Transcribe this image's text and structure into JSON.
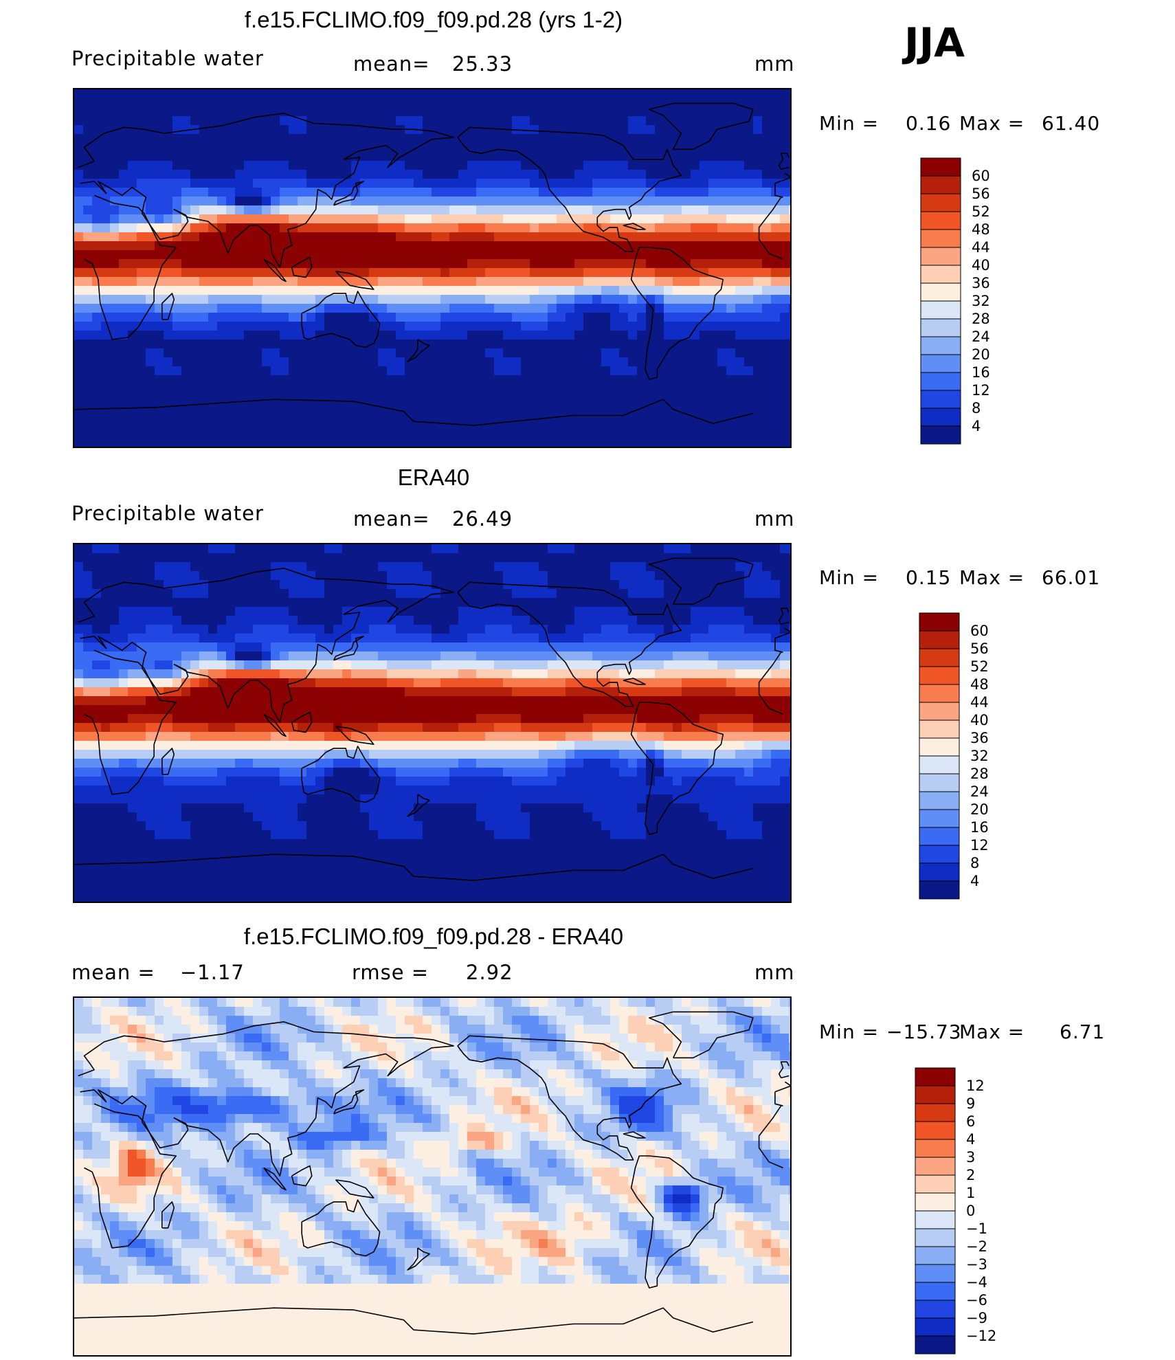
{
  "season": "JJA",
  "chart_data": [
    {
      "type": "heatmap",
      "title": "f.e15.FCLIMO.f09_f09.pd.28 (yrs 1-2)",
      "variable": "Precipitable water",
      "mean_label": "mean=",
      "mean": "25.33",
      "units": "mm",
      "min_label": "Min  =",
      "min": "0.16",
      "max_label": "Max  =",
      "max": "61.40",
      "levels": [
        "60",
        "56",
        "52",
        "48",
        "44",
        "40",
        "36",
        "32",
        "28",
        "24",
        "20",
        "16",
        "12",
        "8",
        "4"
      ],
      "colors": [
        "#8b0000",
        "#b4200a",
        "#d63a12",
        "#ef5526",
        "#f97c4f",
        "#fba582",
        "#fdd0b5",
        "#fdeee2",
        "#dbe6f7",
        "#b7cdf4",
        "#8aaef4",
        "#5f8ef7",
        "#3a6bf5",
        "#2047e3",
        "#0f2cc4",
        "#0a1888"
      ]
    },
    {
      "type": "heatmap",
      "title": "ERA40",
      "variable": "Precipitable water",
      "mean_label": "mean=",
      "mean": "26.49",
      "units": "mm",
      "min_label": "Min  =",
      "min": "0.15",
      "max_label": "Max  =",
      "max": "66.01",
      "levels": [
        "60",
        "56",
        "52",
        "48",
        "44",
        "40",
        "36",
        "32",
        "28",
        "24",
        "20",
        "16",
        "12",
        "8",
        "4"
      ],
      "colors": [
        "#8b0000",
        "#b4200a",
        "#d63a12",
        "#ef5526",
        "#f97c4f",
        "#fba582",
        "#fdd0b5",
        "#fdeee2",
        "#dbe6f7",
        "#b7cdf4",
        "#8aaef4",
        "#5f8ef7",
        "#3a6bf5",
        "#2047e3",
        "#0f2cc4",
        "#0a1888"
      ]
    },
    {
      "type": "heatmap",
      "title": "f.e15.FCLIMO.f09_f09.pd.28 - ERA40",
      "mean_label": "mean  =",
      "mean": "−1.17",
      "rmse_label": "rmse  =",
      "rmse": "2.92",
      "units": "mm",
      "min_label": "Min  =",
      "min": "−15.73",
      "max_label": "Max  =",
      "max": "6.71",
      "levels": [
        "12",
        "9",
        "6",
        "4",
        "3",
        "2",
        "1",
        "0",
        "−1",
        "−2",
        "−3",
        "−4",
        "−6",
        "−9",
        "−12"
      ],
      "colors": [
        "#8b0000",
        "#b4200a",
        "#d63a12",
        "#ef5526",
        "#f97c4f",
        "#fba582",
        "#fdd0b5",
        "#fdeee2",
        "#dbe6f7",
        "#b7cdf4",
        "#8aaef4",
        "#5f8ef7",
        "#3a6bf5",
        "#2047e3",
        "#0f2cc4",
        "#0a1888"
      ]
    }
  ]
}
